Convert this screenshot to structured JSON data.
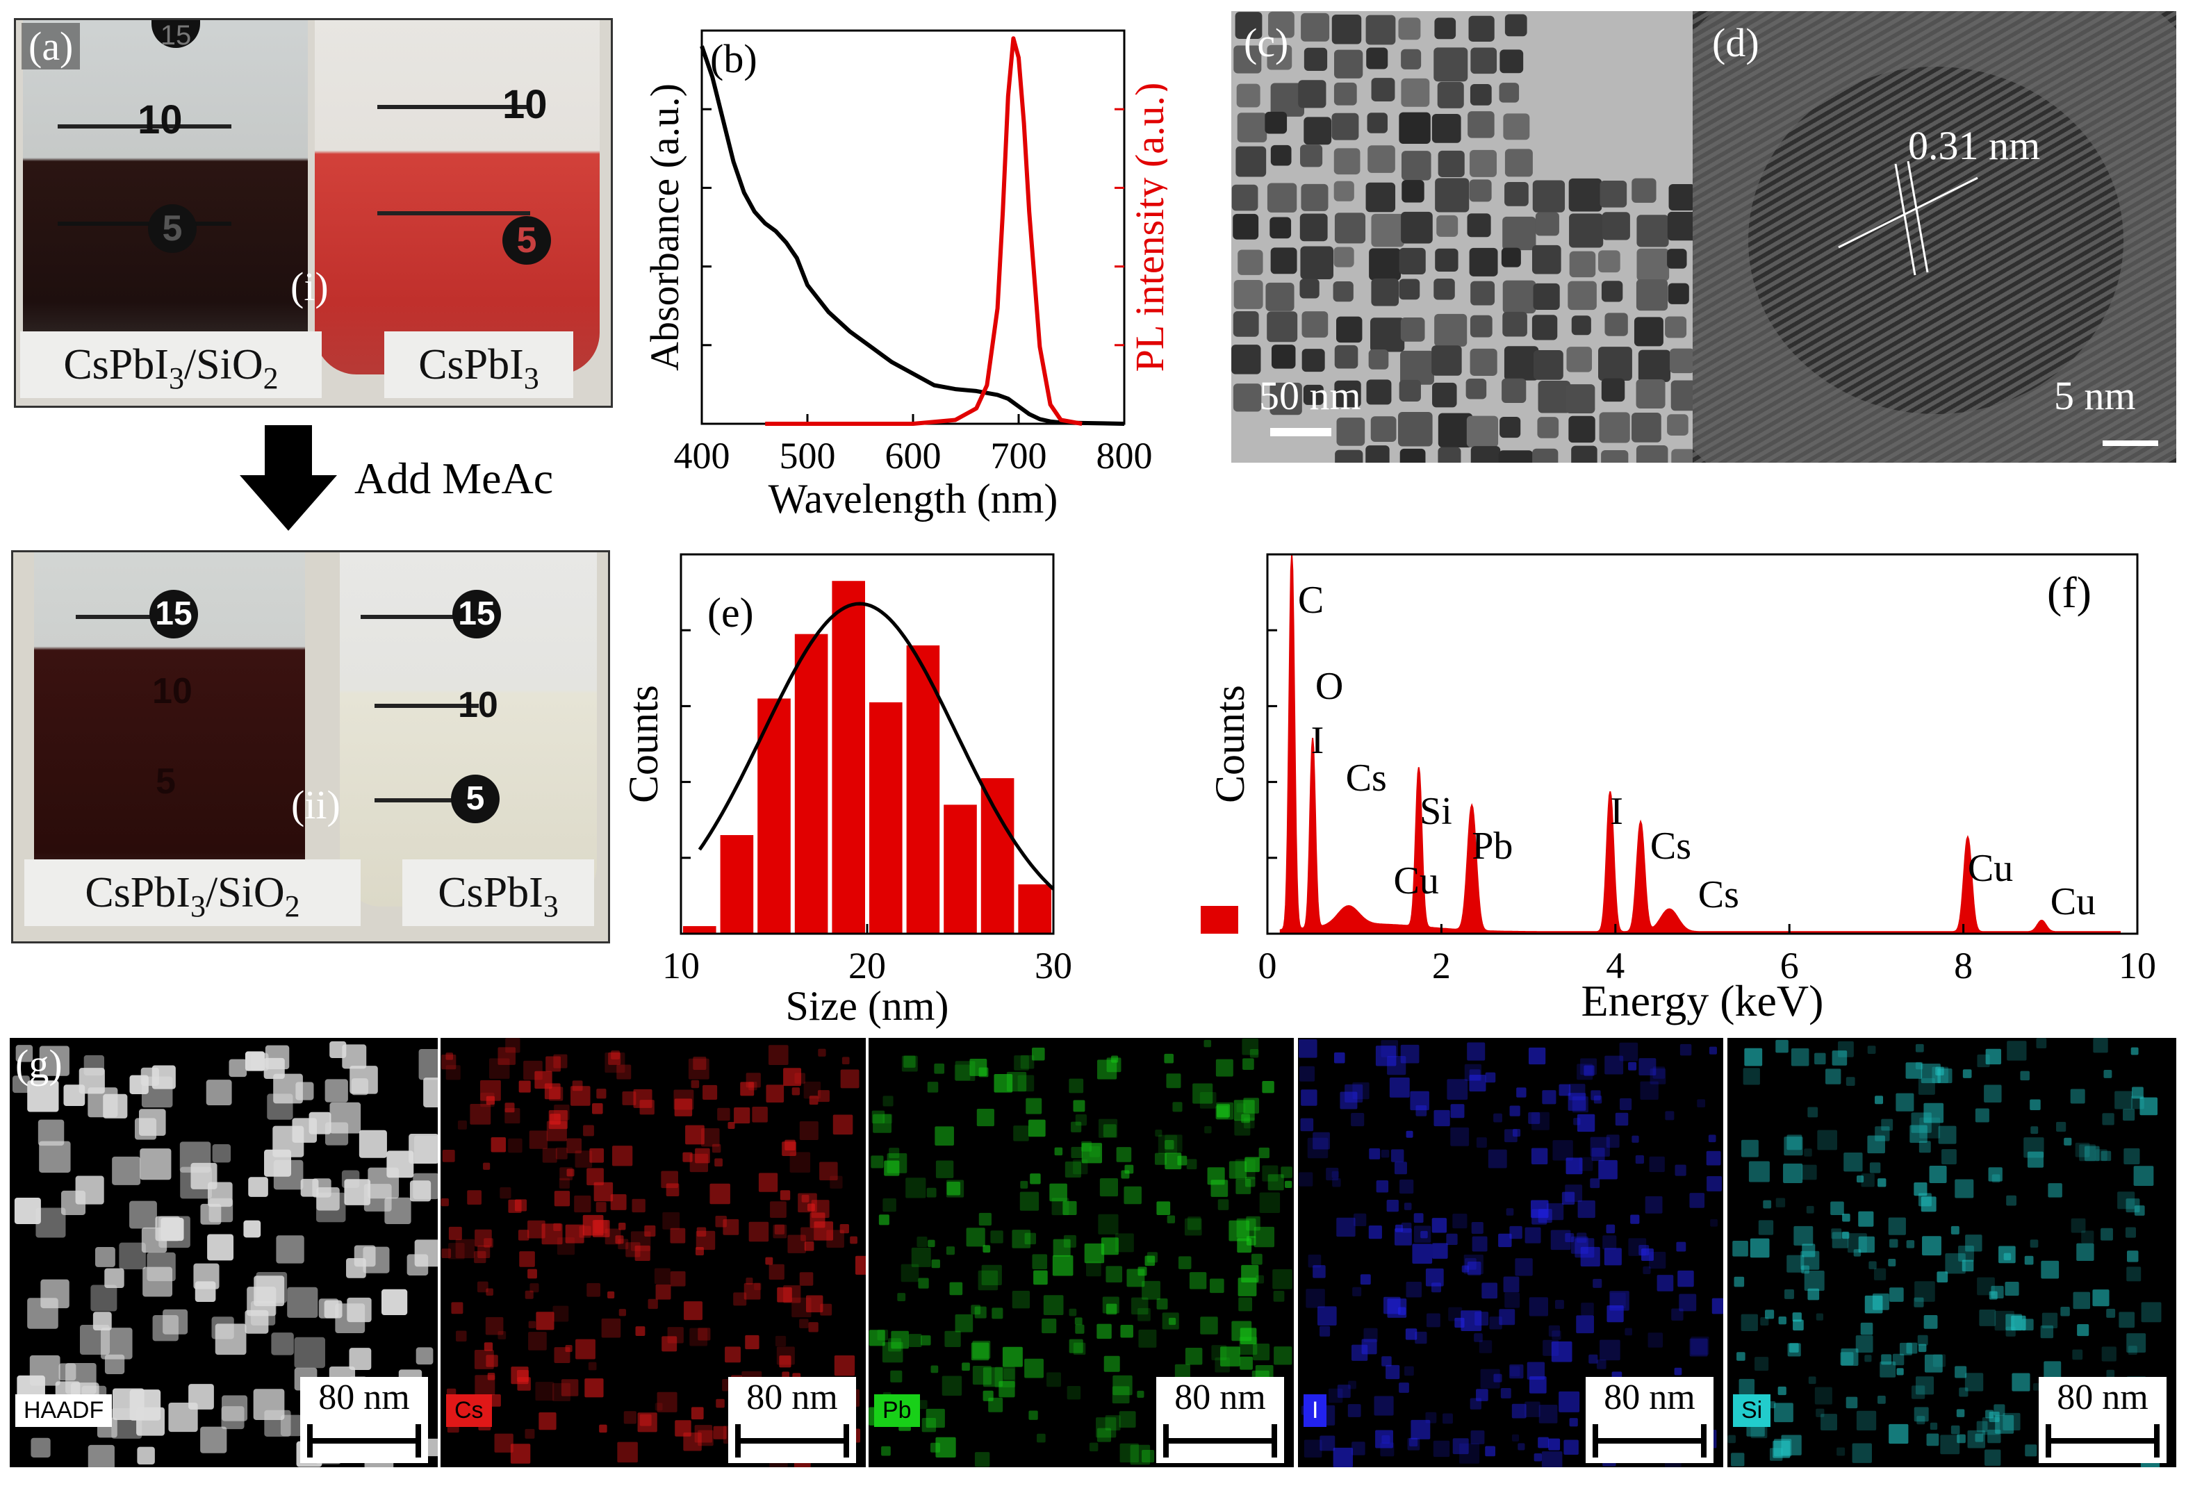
{
  "panel_a": {
    "tag": "(a)",
    "state_tag": "(i)",
    "left_label": {
      "main": "CsPbI",
      "sub1": "3",
      "mid": "/SiO",
      "sub2": "2"
    },
    "right_label": {
      "main": "CsPbI",
      "sub1": "3"
    },
    "tube_marks_left": [
      "15",
      "10",
      "5"
    ],
    "tube_marks_right": [
      "10",
      "5"
    ],
    "colors": {
      "left_liquid": "#2b1512",
      "right_liquid": "#d2413a"
    }
  },
  "arrow": {
    "label": "Add MeAc"
  },
  "panel_a2": {
    "state_tag": "(ii)",
    "left_label": {
      "main": "CsPbI",
      "sub1": "3",
      "mid": "/SiO",
      "sub2": "2"
    },
    "right_label": {
      "main": "CsPbI",
      "sub1": "3"
    },
    "tube_marks_left": [
      "15",
      "10",
      "5"
    ],
    "tube_marks_right": [
      "15",
      "10",
      "5"
    ],
    "colors": {
      "left_liquid": "#3a1210",
      "right_liquid": "#e6e4d6"
    }
  },
  "panel_c": {
    "tag": "(c)",
    "scale": "50 nm"
  },
  "panel_d": {
    "tag": "(d)",
    "spacing": "0.31 nm",
    "scale": "5 nm"
  },
  "panel_g": {
    "tag": "(g)",
    "maps": [
      {
        "label": "HAADF",
        "scale": "80 nm",
        "color": "#dddddd",
        "tag_bg": "#ffffff",
        "tag_fg": "#000000"
      },
      {
        "label": "Cs",
        "scale": "80 nm",
        "color": "#e01818",
        "tag_bg": "#e01818",
        "tag_fg": "#000000"
      },
      {
        "label": "Pb",
        "scale": "80 nm",
        "color": "#18d018",
        "tag_bg": "#18d018",
        "tag_fg": "#000000"
      },
      {
        "label": "I",
        "scale": "80 nm",
        "color": "#2222ee",
        "tag_bg": "#2222ee",
        "tag_fg": "#ffffff"
      },
      {
        "label": "Si",
        "scale": "80 nm",
        "color": "#22cccc",
        "tag_bg": "#22cccc",
        "tag_fg": "#000000"
      }
    ]
  },
  "chart_data": [
    {
      "id": "b",
      "tag": "(b)",
      "type": "line",
      "xlabel": "Wavelength (nm)",
      "ylabel_left": "Absorbance (a.u.)",
      "ylabel_right": "PL intensity (a.u.)",
      "xlim": [
        400,
        800
      ],
      "ylim": [
        0,
        1
      ],
      "xticks": [
        "400",
        "500",
        "600",
        "700",
        "800"
      ],
      "series": [
        {
          "name": "Absorbance",
          "color": "#000000",
          "x": [
            400,
            410,
            420,
            430,
            440,
            450,
            460,
            470,
            480,
            490,
            500,
            520,
            540,
            560,
            580,
            600,
            620,
            640,
            660,
            680,
            690,
            700,
            710,
            720,
            730,
            740,
            760,
            780,
            800
          ],
          "y": [
            0.98,
            0.9,
            0.79,
            0.68,
            0.6,
            0.55,
            0.52,
            0.5,
            0.47,
            0.43,
            0.36,
            0.29,
            0.24,
            0.2,
            0.16,
            0.13,
            0.1,
            0.09,
            0.085,
            0.075,
            0.065,
            0.045,
            0.025,
            0.012,
            0.006,
            0.003,
            0.002,
            0.001,
            0.0
          ]
        },
        {
          "name": "PL",
          "color": "#e10000",
          "x": [
            460,
            600,
            640,
            660,
            670,
            680,
            685,
            690,
            695,
            700,
            705,
            710,
            720,
            730,
            740,
            760
          ],
          "y": [
            0.0,
            0.0,
            0.01,
            0.04,
            0.1,
            0.3,
            0.55,
            0.85,
            1.0,
            0.95,
            0.78,
            0.55,
            0.2,
            0.05,
            0.01,
            0.0
          ]
        }
      ]
    },
    {
      "id": "e",
      "tag": "(e)",
      "type": "bar",
      "xlabel": "Size (nm)",
      "ylabel": "Counts",
      "xlim": [
        10,
        30
      ],
      "ylim": [
        0,
        1.0
      ],
      "xticks": [
        "10",
        "20",
        "30"
      ],
      "bar_color": "#e10000",
      "categories": [
        11,
        13,
        15,
        17,
        19,
        21,
        23,
        25,
        27,
        29
      ],
      "values": [
        0.02,
        0.26,
        0.62,
        0.79,
        0.93,
        0.61,
        0.76,
        0.34,
        0.41,
        0.13
      ],
      "fit": {
        "type": "gaussian",
        "center": 19.6,
        "sigma": 5.2,
        "amplitude": 0.87,
        "x_from": 11,
        "x_to": 30
      }
    },
    {
      "id": "f",
      "tag": "(f)",
      "type": "area",
      "xlabel": "Energy (keV)",
      "ylabel": "Counts",
      "xlim": [
        0,
        10
      ],
      "ylim": [
        0,
        1.0
      ],
      "xticks": [
        "0",
        "2",
        "4",
        "6",
        "8",
        "10"
      ],
      "color": "#e10000",
      "peaks": [
        {
          "label": "C",
          "energy": 0.28,
          "height": 1.0
        },
        {
          "label": "O",
          "energy": 0.52,
          "height": 0.5
        },
        {
          "label": "I",
          "energy": 0.52,
          "height": 0.0
        },
        {
          "label": "Cs",
          "energy": 0.55,
          "height": 0.0
        },
        {
          "label": "Cu",
          "energy": 0.93,
          "height": 0.05
        },
        {
          "label": "Si",
          "energy": 1.74,
          "height": 0.42
        },
        {
          "label": "Pb",
          "energy": 2.35,
          "height": 0.33
        },
        {
          "label": "I",
          "energy": 3.94,
          "height": 0.37
        },
        {
          "label": "Cs",
          "energy": 4.29,
          "height": 0.29
        },
        {
          "label": "Cs",
          "energy": 4.62,
          "height": 0.06
        },
        {
          "label": "Cu",
          "energy": 8.05,
          "height": 0.25
        },
        {
          "label": "Cu",
          "energy": 8.9,
          "height": 0.03
        }
      ]
    }
  ]
}
